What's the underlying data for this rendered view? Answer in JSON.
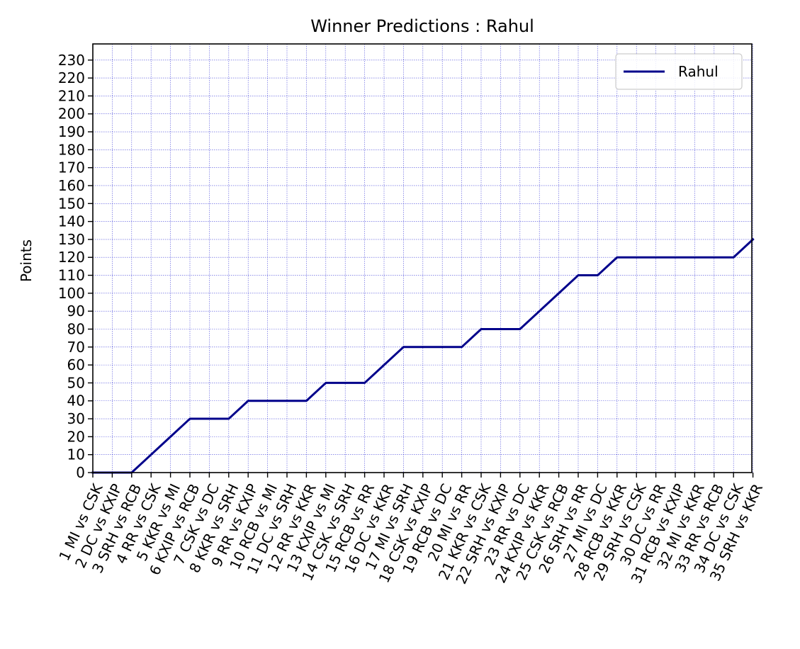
{
  "chart_data": {
    "type": "line",
    "title": "Winner Predictions : Rahul",
    "xlabel": "",
    "ylabel": "Points",
    "categories": [
      "1 MI vs CSK",
      "2 DC vs KXIP",
      "3 SRH vs RCB",
      "4 RR vs CSK",
      "5 KKR vs MI",
      "6 KXIP vs RCB",
      "7 CSK vs DC",
      "8 KKR vs SRH",
      "9 RR vs KXIP",
      "10 RCB vs MI",
      "11 DC vs SRH",
      "12 RR vs KKR",
      "13 KXIP vs MI",
      "14 CSK vs SRH",
      "15 RCB vs RR",
      "16 DC vs KKR",
      "17 MI vs SRH",
      "18 CSK vs KXIP",
      "19 RCB vs DC",
      "20 MI vs RR",
      "21 KKR vs CSK",
      "22 SRH vs KXIP",
      "23 RR vs DC",
      "24 KXIP vs KKR",
      "25 CSK vs RCB",
      "26 SRH vs RR",
      "27 MI vs DC",
      "28 RCB vs KKR",
      "29 SRH vs CSK",
      "30 DC vs RR",
      "31 RCB vs KXIP",
      "32 MI vs KKR",
      "33 RR vs RCB",
      "34 DC vs CSK",
      "35 SRH vs KKR"
    ],
    "series": [
      {
        "name": "Rahul",
        "color": "#00008b",
        "values": [
          0,
          0,
          0,
          10,
          20,
          30,
          30,
          30,
          40,
          40,
          40,
          40,
          50,
          50,
          50,
          60,
          70,
          70,
          70,
          70,
          80,
          80,
          80,
          90,
          100,
          110,
          110,
          120,
          120,
          120,
          120,
          120,
          120,
          120,
          130
        ]
      }
    ],
    "ylim": [
      0,
      239
    ],
    "yticks": [
      0,
      10,
      20,
      30,
      40,
      50,
      60,
      70,
      80,
      90,
      100,
      110,
      120,
      130,
      140,
      150,
      160,
      170,
      180,
      190,
      200,
      210,
      220,
      230
    ],
    "grid": true,
    "grid_color": "#0000cd",
    "legend_position": "top-right"
  }
}
